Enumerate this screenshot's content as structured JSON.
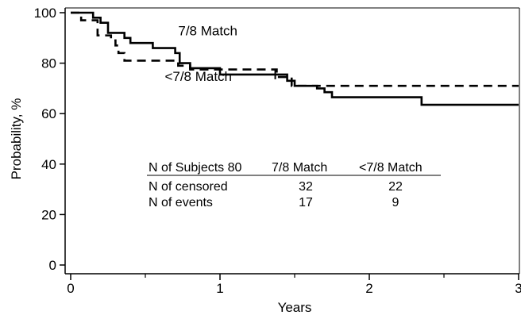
{
  "chart_data": {
    "type": "line",
    "subtype": "kaplan-meier step",
    "title": "",
    "xlabel": "Years",
    "ylabel": "Probability, %",
    "xlim": [
      0,
      3
    ],
    "ylim": [
      0,
      100
    ],
    "xticks": [
      0,
      1,
      2,
      3
    ],
    "xminor_ticks": [
      0.5,
      1.5,
      2.5
    ],
    "yticks": [
      0,
      20,
      40,
      60,
      80,
      100
    ],
    "grid": false,
    "series": [
      {
        "name": "7/8 Match",
        "style": "solid",
        "color": "#000000",
        "steps": [
          [
            0,
            100
          ],
          [
            0.15,
            98
          ],
          [
            0.2,
            96
          ],
          [
            0.25,
            92
          ],
          [
            0.36,
            90
          ],
          [
            0.4,
            88
          ],
          [
            0.55,
            86
          ],
          [
            0.7,
            84
          ],
          [
            0.73,
            80
          ],
          [
            0.8,
            78
          ],
          [
            1.0,
            75.5
          ],
          [
            1.45,
            73
          ],
          [
            1.5,
            71
          ],
          [
            1.65,
            70
          ],
          [
            1.7,
            68.5
          ],
          [
            1.75,
            66.5
          ],
          [
            2.35,
            63.5
          ],
          [
            3.0,
            63.5
          ]
        ],
        "censor_marks": [
          [
            1.37,
            75.5
          ]
        ]
      },
      {
        "name": "<7/8 Match",
        "style": "dashed",
        "color": "#000000",
        "steps": [
          [
            0,
            100
          ],
          [
            0.07,
            97
          ],
          [
            0.18,
            91
          ],
          [
            0.27,
            89
          ],
          [
            0.3,
            87
          ],
          [
            0.32,
            84
          ],
          [
            0.36,
            81
          ],
          [
            0.72,
            79
          ],
          [
            0.8,
            77.5
          ],
          [
            1.38,
            74.5
          ],
          [
            1.48,
            71
          ],
          [
            3.0,
            71
          ]
        ],
        "censor_marks": []
      }
    ],
    "annotations": [
      {
        "text": "7/8 Match",
        "x": 0.72,
        "y": 91
      },
      {
        "text": "<7/8 Match",
        "x": 0.63,
        "y": 73
      }
    ],
    "table": {
      "header": [
        "N of Subjects 80",
        "7/8 Match",
        "<7/8 Match"
      ],
      "rows": [
        [
          "N of censored",
          "32",
          "22"
        ],
        [
          "N of events",
          "17",
          "9"
        ]
      ]
    }
  }
}
